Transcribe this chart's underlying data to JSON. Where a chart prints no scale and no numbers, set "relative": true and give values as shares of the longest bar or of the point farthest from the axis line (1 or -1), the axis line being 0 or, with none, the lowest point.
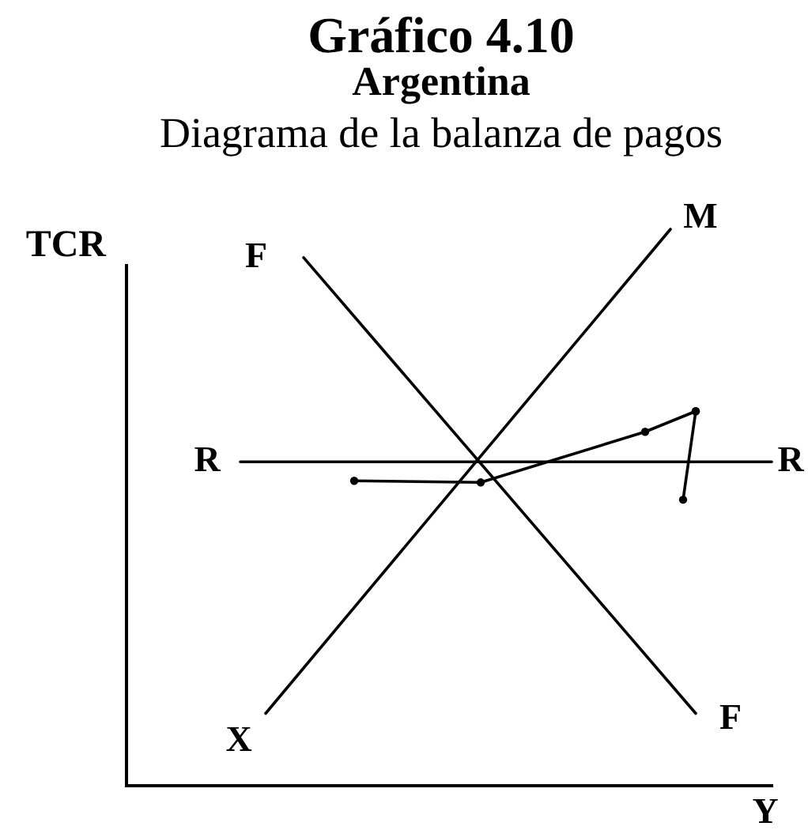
{
  "chart_data": {
    "type": "line",
    "title": "Gráfico 4.10",
    "subtitle": "Argentina",
    "xlabel": "Y",
    "ylabel": "TCR",
    "relative": true,
    "marker": "none",
    "line_style": "solid",
    "categories": [
      null,
      null,
      null,
      null,
      null,
      null,
      null,
      null,
      null,
      null,
      null,
      null,
      null,
      null,
      null,
      null,
      null,
      null,
      null,
      null,
      null,
      null,
      null,
      null,
      null,
      null,
      null,
      null,
      null,
      null,
      null,
      null,
      null,
      null,
      null,
      null,
      null,
      null,
      null,
      null,
      null,
      null,
      null,
      null,
      null,
      null,
      null,
      null,
      null,
      null,
      null,
      null
    ],
    "series": [
      {
        "color": "#000000",
        "values": [
          null,
          null,
          null,
          null,
          null,
          null,
          null,
          null,
          null,
          null,
          null,
          0.13,
          null,
          null,
          null,
          null,
          null,
          null,
          null,
          null,
          null,
          null,
          null,
          null,
          null,
          null,
          null,
          null,
          null,
          null,
          null,
          null,
          null,
          null,
          null,
          null,
          null,
          null,
          null,
          null,
          null,
          null,
          null,
          1.0,
          null,
          null,
          null,
          null,
          null,
          null,
          null,
          null
        ]
      },
      {
        "color": "#000000",
        "values": [
          null,
          null,
          null,
          null,
          null,
          null,
          null,
          null,
          null,
          null,
          null,
          null,
          null,
          null,
          0.949,
          null,
          null,
          null,
          null,
          null,
          null,
          null,
          null,
          null,
          null,
          null,
          null,
          null,
          null,
          null,
          null,
          null,
          null,
          null,
          null,
          null,
          null,
          null,
          null,
          null,
          null,
          null,
          null,
          null,
          null,
          0.13,
          null,
          null,
          null,
          null,
          null,
          null
        ]
      },
      {
        "color": "#000000",
        "values": [
          null,
          null,
          null,
          null,
          null,
          null,
          null,
          null,
          null,
          0.582,
          null,
          null,
          null,
          null,
          null,
          null,
          null,
          null,
          null,
          null,
          null,
          null,
          null,
          null,
          null,
          null,
          null,
          null,
          null,
          null,
          null,
          null,
          null,
          null,
          null,
          null,
          null,
          null,
          null,
          null,
          null,
          null,
          null,
          null,
          null,
          null,
          null,
          null,
          null,
          null,
          null,
          0.582
        ]
      },
      {
        "color": "#000000",
        "marker": "circle",
        "values": [
          null,
          null,
          null,
          null,
          null,
          null,
          null,
          null,
          null,
          null,
          null,
          null,
          null,
          null,
          null,
          null,
          null,
          null,
          0.548,
          null,
          null,
          null,
          null,
          null,
          null,
          null,
          null,
          null,
          0.545,
          null,
          null,
          null,
          null,
          null,
          null,
          null,
          null,
          null,
          null,
          null,
          null,
          0.636,
          null,
          null,
          null,
          0.673,
          null,
          null,
          null,
          null,
          null,
          null
        ]
      },
      {
        "color": "#000000",
        "marker": "circle",
        "values": [
          null,
          null,
          null,
          null,
          null,
          null,
          null,
          null,
          null,
          null,
          null,
          null,
          null,
          null,
          null,
          null,
          null,
          null,
          null,
          null,
          null,
          null,
          null,
          null,
          null,
          null,
          null,
          null,
          null,
          null,
          null,
          null,
          null,
          null,
          null,
          null,
          null,
          null,
          null,
          null,
          null,
          null,
          null,
          null,
          0.514,
          0.673,
          null,
          null,
          null,
          null,
          null,
          null
        ]
      }
    ],
    "annotations": [
      "Diagrama de la balanza de pagos",
      "F",
      "M",
      "R",
      "R",
      "X",
      "F"
    ]
  }
}
